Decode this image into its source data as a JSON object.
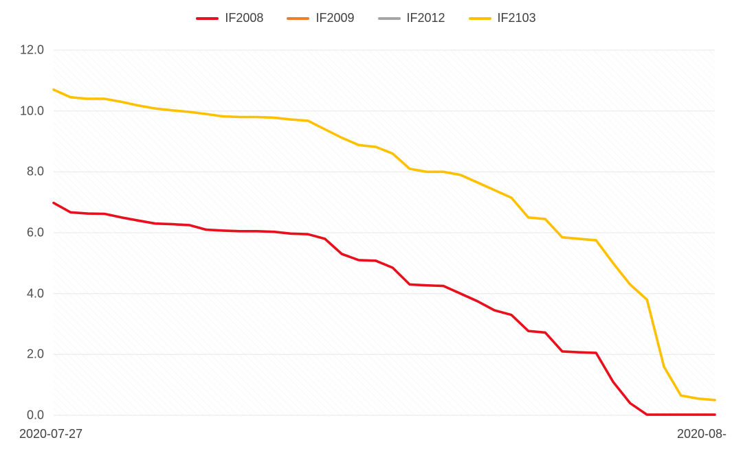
{
  "chart_data": {
    "type": "line",
    "title": "",
    "xlabel": "",
    "ylabel": "",
    "x_axis_labels": {
      "start": "2020-07-27",
      "end": "2020-08-"
    },
    "ylim": [
      0,
      12
    ],
    "ytick_step": 2,
    "ytick_labels": [
      "0.0",
      "2.0",
      "4.0",
      "6.0",
      "8.0",
      "10.0",
      "12.0"
    ],
    "grid": "horizontal",
    "grid_color": "#e7e7e7",
    "axis_text_color": "#4d4d4d",
    "legend_position": "top-center",
    "plot_background": "diagonal-hatch",
    "series": [
      {
        "name": "IF2008",
        "color": "#e8101c",
        "values": [
          6.98,
          6.67,
          6.63,
          6.62,
          6.5,
          6.4,
          6.3,
          6.28,
          6.25,
          6.1,
          6.07,
          6.05,
          6.05,
          6.03,
          5.97,
          5.95,
          5.8,
          5.3,
          5.1,
          5.08,
          4.85,
          4.3,
          4.27,
          4.25,
          4.0,
          3.75,
          3.45,
          3.3,
          2.77,
          2.72,
          2.1,
          2.07,
          2.05,
          1.1,
          0.4,
          0.02,
          0.02,
          0.02,
          0.02,
          0.02
        ]
      },
      {
        "name": "IF2009",
        "color": "#ed7d31",
        "values": []
      },
      {
        "name": "IF2012",
        "color": "#a6a6a6",
        "values": []
      },
      {
        "name": "IF2103",
        "color": "#ffc000",
        "values": [
          10.7,
          10.45,
          10.4,
          10.4,
          10.3,
          10.18,
          10.08,
          10.02,
          9.97,
          9.9,
          9.82,
          9.8,
          9.8,
          9.78,
          9.72,
          9.68,
          9.4,
          9.12,
          8.88,
          8.82,
          8.6,
          8.1,
          8.0,
          8.0,
          7.9,
          7.65,
          7.4,
          7.15,
          6.5,
          6.45,
          5.85,
          5.8,
          5.75,
          5.0,
          4.3,
          3.8,
          1.6,
          0.65,
          0.55,
          0.5
        ]
      }
    ]
  }
}
